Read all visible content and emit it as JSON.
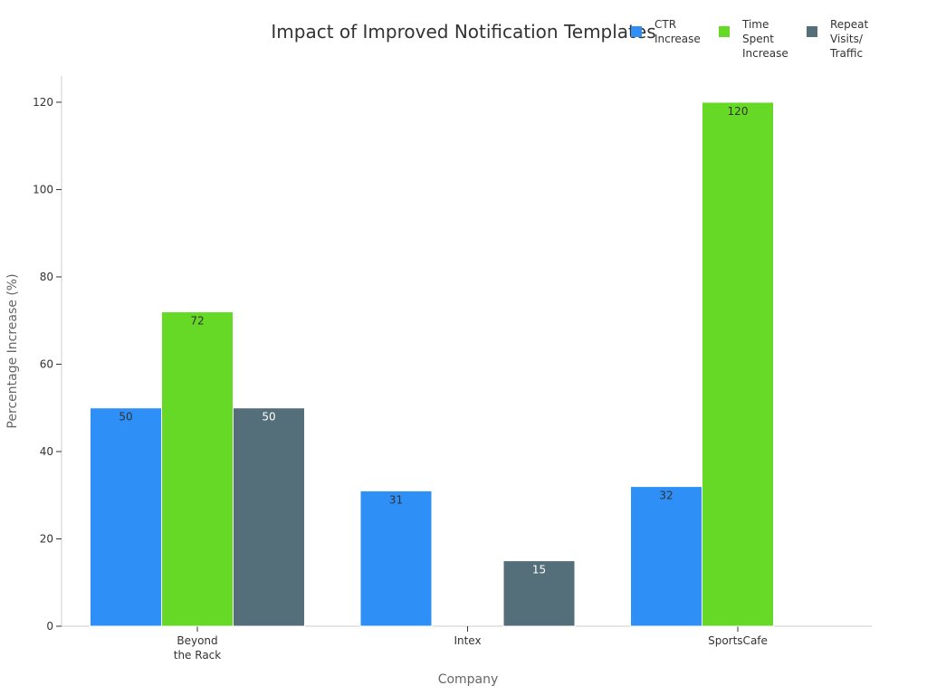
{
  "chart_data": {
    "type": "bar",
    "title": "Impact of Improved Notification Templates",
    "xlabel": "Company",
    "ylabel": "Percentage Increase (%)",
    "categories": [
      [
        "Beyond",
        "the Rack"
      ],
      [
        "Intex"
      ],
      [
        "SportsCafe"
      ]
    ],
    "ylim": [
      0,
      126
    ],
    "yticks": [
      0,
      20,
      40,
      60,
      80,
      100,
      120
    ],
    "grid": false,
    "legend_placement": "top-right",
    "series": [
      {
        "name": [
          "CTR",
          "Increase"
        ],
        "color": "#2E8FF7",
        "values": [
          50,
          31,
          32
        ],
        "label_color": "#333333"
      },
      {
        "name": [
          "Time",
          "Spent",
          "Increase"
        ],
        "color": "#66D926",
        "values": [
          72,
          null,
          120
        ],
        "label_color": "#333333"
      },
      {
        "name": [
          "Repeat",
          "Visits/",
          "Traffic"
        ],
        "color": "#546E7A",
        "values": [
          50,
          15,
          null
        ],
        "label_color": "#ffffff"
      }
    ]
  }
}
